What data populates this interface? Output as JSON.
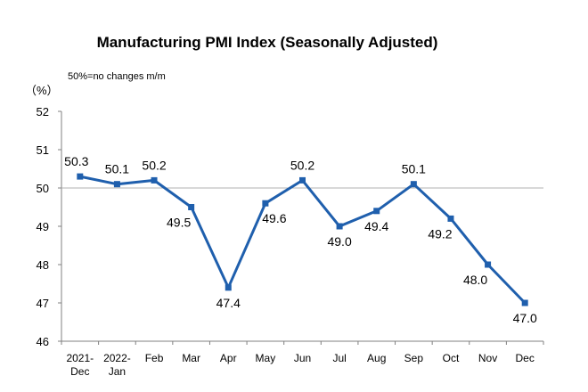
{
  "chart_data": {
    "type": "line",
    "title": "Manufacturing PMI Index (Seasonally Adjusted)",
    "unit_label": "（%）",
    "note": "50%=no changes m/m",
    "categories": [
      [
        "2021-",
        "Dec"
      ],
      [
        "2022-",
        "Jan"
      ],
      [
        "Feb"
      ],
      [
        "Mar"
      ],
      [
        "Apr"
      ],
      [
        "May"
      ],
      [
        "Jun"
      ],
      [
        "Jul"
      ],
      [
        "Aug"
      ],
      [
        "Sep"
      ],
      [
        "Oct"
      ],
      [
        "Nov"
      ],
      [
        "Dec"
      ]
    ],
    "series": [
      {
        "values": [
          50.3,
          50.1,
          50.2,
          49.5,
          47.4,
          49.6,
          50.2,
          49.0,
          49.4,
          50.1,
          49.2,
          48.0,
          47.0
        ],
        "labels": [
          "50.3",
          "50.1",
          "50.2",
          "49.5",
          "47.4",
          "49.6",
          "50.2",
          "49.0",
          "49.4",
          "50.1",
          "49.2",
          "48.0",
          "47.0"
        ],
        "color": "#1f5fad"
      }
    ],
    "ylim": [
      46,
      52
    ],
    "yticks": [
      46,
      47,
      48,
      49,
      50,
      51,
      52
    ],
    "reference_line": 50,
    "grid": false,
    "legend": "none"
  }
}
